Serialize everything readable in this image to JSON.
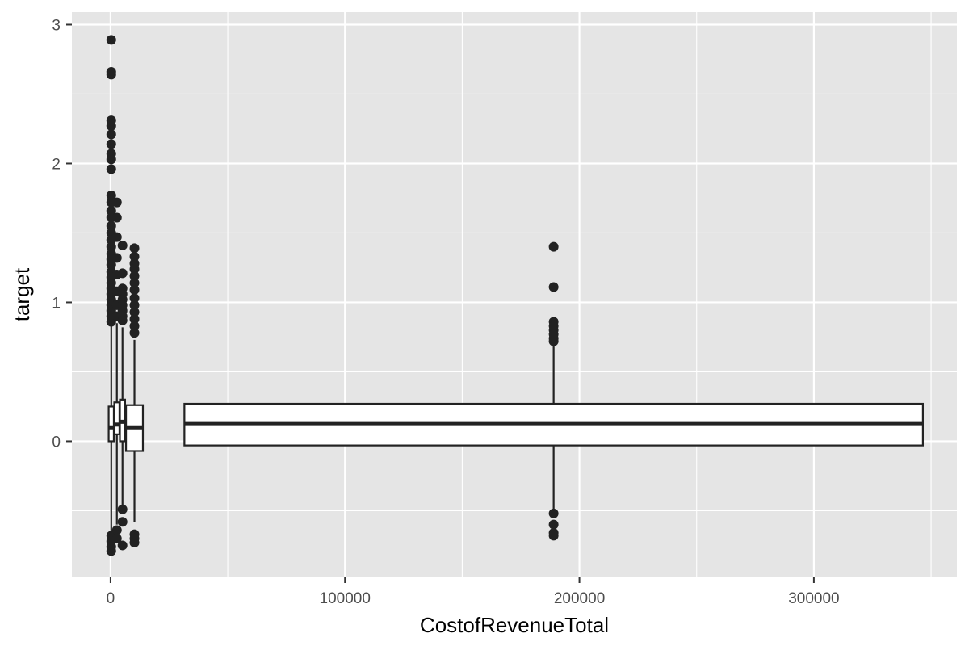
{
  "chart_data": {
    "type": "boxplot",
    "xlabel": "CostofRevenueTotal",
    "ylabel": "target",
    "xlim": [
      -16500,
      361000
    ],
    "ylim": [
      -0.98,
      3.09
    ],
    "x_major_ticks": [
      0,
      100000,
      200000,
      300000
    ],
    "x_tick_labels": [
      "0",
      "100000",
      "200000",
      "300000"
    ],
    "x_minor_ticks": [
      50000,
      150000,
      250000,
      350000
    ],
    "y_major_ticks": [
      0,
      1,
      2,
      3
    ],
    "y_tick_labels": [
      "0",
      "1",
      "2",
      "3"
    ],
    "y_minor_ticks": [
      -0.5,
      0.5,
      1.5,
      2.5
    ],
    "grid": true,
    "boxes": [
      {
        "x_min": -800,
        "x_max": 1400,
        "q1": 0.0,
        "median": 0.1,
        "q3": 0.25,
        "whisker_low": -0.75,
        "whisker_high": 1.3,
        "outliers": [
          {
            "x": 300,
            "y": 2.89
          },
          {
            "x": 300,
            "y": 2.66
          },
          {
            "x": 300,
            "y": 2.64
          },
          {
            "x": 300,
            "y": 2.31
          },
          {
            "x": 300,
            "y": 2.27
          },
          {
            "x": 300,
            "y": 2.21
          },
          {
            "x": 300,
            "y": 2.14
          },
          {
            "x": 300,
            "y": 2.07
          },
          {
            "x": 300,
            "y": 2.03
          },
          {
            "x": 300,
            "y": 1.96
          },
          {
            "x": 300,
            "y": 1.77
          },
          {
            "x": 300,
            "y": 1.72
          },
          {
            "x": 300,
            "y": 1.66
          },
          {
            "x": 300,
            "y": 1.61
          },
          {
            "x": 300,
            "y": 1.55
          },
          {
            "x": 300,
            "y": 1.5
          },
          {
            "x": 300,
            "y": 1.45
          },
          {
            "x": 300,
            "y": 1.4
          },
          {
            "x": 300,
            "y": 1.35
          },
          {
            "x": 300,
            "y": 1.31
          },
          {
            "x": 300,
            "y": 1.27
          },
          {
            "x": 300,
            "y": 1.22
          },
          {
            "x": 300,
            "y": 1.18
          },
          {
            "x": 300,
            "y": 1.14
          },
          {
            "x": 300,
            "y": 1.1
          },
          {
            "x": 300,
            "y": 1.06
          },
          {
            "x": 300,
            "y": 1.02
          },
          {
            "x": 300,
            "y": 0.98
          },
          {
            "x": 300,
            "y": 0.94
          },
          {
            "x": 300,
            "y": 0.9
          },
          {
            "x": 300,
            "y": 0.86
          },
          {
            "x": 300,
            "y": -0.68
          },
          {
            "x": 300,
            "y": -0.72
          },
          {
            "x": 300,
            "y": -0.76
          },
          {
            "x": 300,
            "y": -0.79
          }
        ]
      },
      {
        "x_min": 1600,
        "x_max": 3800,
        "q1": 0.05,
        "median": 0.12,
        "q3": 0.28,
        "whisker_low": -0.6,
        "whisker_high": 0.85,
        "outliers": [
          {
            "x": 2700,
            "y": 1.72
          },
          {
            "x": 2700,
            "y": 1.61
          },
          {
            "x": 2700,
            "y": 1.47
          },
          {
            "x": 2700,
            "y": 1.32
          },
          {
            "x": 2700,
            "y": 1.2
          },
          {
            "x": 2700,
            "y": 1.08
          },
          {
            "x": 2700,
            "y": 0.98
          },
          {
            "x": 2700,
            "y": 0.9
          },
          {
            "x": 2700,
            "y": -0.64
          },
          {
            "x": 2700,
            "y": -0.7
          }
        ]
      },
      {
        "x_min": 4000,
        "x_max": 6200,
        "q1": 0.0,
        "median": 0.14,
        "q3": 0.3,
        "whisker_low": -0.5,
        "whisker_high": 0.82,
        "outliers": [
          {
            "x": 5100,
            "y": 1.41
          },
          {
            "x": 5100,
            "y": 1.21
          },
          {
            "x": 5100,
            "y": 1.1
          },
          {
            "x": 5100,
            "y": 1.06
          },
          {
            "x": 5100,
            "y": 1.02
          },
          {
            "x": 5100,
            "y": 0.98
          },
          {
            "x": 5100,
            "y": 0.94
          },
          {
            "x": 5100,
            "y": 0.9
          },
          {
            "x": 5100,
            "y": 0.87
          },
          {
            "x": 5100,
            "y": -0.49
          },
          {
            "x": 5100,
            "y": -0.58
          },
          {
            "x": 5100,
            "y": -0.75
          }
        ]
      },
      {
        "x_min": 6600,
        "x_max": 13800,
        "q1": -0.07,
        "median": 0.1,
        "q3": 0.26,
        "whisker_low": -0.58,
        "whisker_high": 0.73,
        "outliers": [
          {
            "x": 10200,
            "y": 1.39
          },
          {
            "x": 10200,
            "y": 1.33
          },
          {
            "x": 10200,
            "y": 1.28
          },
          {
            "x": 10200,
            "y": 1.24
          },
          {
            "x": 10200,
            "y": 1.19
          },
          {
            "x": 10200,
            "y": 1.14
          },
          {
            "x": 10200,
            "y": 1.09
          },
          {
            "x": 10200,
            "y": 1.03
          },
          {
            "x": 10200,
            "y": 0.98
          },
          {
            "x": 10200,
            "y": 0.93
          },
          {
            "x": 10200,
            "y": 0.88
          },
          {
            "x": 10200,
            "y": 0.83
          },
          {
            "x": 10200,
            "y": 0.78
          },
          {
            "x": 10200,
            "y": -0.67
          },
          {
            "x": 10200,
            "y": -0.7
          },
          {
            "x": 10200,
            "y": -0.73
          }
        ]
      },
      {
        "x_min": 31500,
        "x_max": 346500,
        "q1": -0.03,
        "median": 0.13,
        "q3": 0.27,
        "whisker_low": -0.51,
        "whisker_high": 0.7,
        "outliers": [
          {
            "x": 189000,
            "y": 1.4
          },
          {
            "x": 189000,
            "y": 1.11
          },
          {
            "x": 189000,
            "y": 0.86
          },
          {
            "x": 189000,
            "y": 0.83
          },
          {
            "x": 189000,
            "y": 0.8
          },
          {
            "x": 189000,
            "y": 0.77
          },
          {
            "x": 189000,
            "y": 0.74
          },
          {
            "x": 189000,
            "y": 0.72
          },
          {
            "x": 189000,
            "y": -0.52
          },
          {
            "x": 189000,
            "y": -0.6
          },
          {
            "x": 189000,
            "y": -0.66
          },
          {
            "x": 189000,
            "y": -0.68
          }
        ]
      }
    ]
  },
  "labels": {
    "xlabel": "CostofRevenueTotal",
    "ylabel": "target"
  }
}
